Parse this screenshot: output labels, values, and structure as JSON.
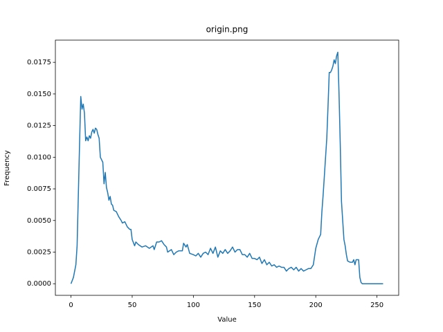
{
  "chart_data": {
    "type": "line",
    "title": "origin.png",
    "x_label": "Value",
    "y_label": "Frequency",
    "xlim": [
      -12.75,
      267.75
    ],
    "xticks": [
      0,
      50,
      100,
      150,
      200,
      250
    ],
    "ylim": [
      -0.000917,
      0.019257
    ],
    "yticks": [
      {
        "value": 0,
        "label": "0.0000"
      },
      {
        "value": 0.0025,
        "label": "0.0025"
      },
      {
        "value": 0.005,
        "label": "0.0050"
      },
      {
        "value": 0.0075,
        "label": "0.0075"
      },
      {
        "value": 0.01,
        "label": "0.0100"
      },
      {
        "value": 0.0125,
        "label": "0.0125"
      },
      {
        "value": 0.015,
        "label": "0.0150"
      },
      {
        "value": 0.0175,
        "label": "0.0175"
      }
    ],
    "grid": false,
    "series": [
      {
        "color": "#1f77b4",
        "x": [
          0,
          2,
          4,
          5,
          6,
          7,
          8,
          9,
          10,
          11,
          12,
          13,
          14,
          15,
          16,
          17,
          18,
          19,
          20,
          21,
          22,
          23,
          24,
          25,
          26,
          27,
          28,
          29,
          30,
          31,
          32,
          33,
          34,
          35,
          37,
          39,
          41,
          42,
          44,
          46,
          48,
          49,
          50,
          52,
          53,
          55,
          58,
          61,
          64,
          67,
          68,
          70,
          72,
          74,
          76,
          78,
          79,
          82,
          84,
          86,
          88,
          91,
          92,
          94,
          95,
          97,
          100,
          102,
          104,
          106,
          108,
          110,
          112,
          114,
          116,
          118,
          120,
          122,
          124,
          126,
          128,
          130,
          132,
          134,
          136,
          138,
          140,
          142,
          144,
          146,
          148,
          150,
          152,
          154,
          156,
          158,
          160,
          162,
          164,
          166,
          168,
          170,
          172,
          174,
          176,
          178,
          180,
          182,
          184,
          186,
          188,
          190,
          192,
          194,
          196,
          198,
          200,
          202,
          204,
          205,
          206,
          207,
          208,
          209,
          210,
          211,
          212,
          213,
          214,
          215,
          216,
          217,
          218,
          219,
          220,
          221,
          222,
          223,
          224,
          225,
          226,
          228,
          230,
          231,
          232,
          233,
          235,
          236,
          237,
          238,
          255
        ],
        "values": [
          0,
          0.0005,
          0.0015,
          0.003,
          0.007,
          0.011,
          0.0148,
          0.0138,
          0.0142,
          0.0135,
          0.0113,
          0.0116,
          0.0113,
          0.0117,
          0.0115,
          0.012,
          0.0122,
          0.0119,
          0.0123,
          0.0122,
          0.0118,
          0.0115,
          0.01,
          0.0098,
          0.0096,
          0.0079,
          0.0088,
          0.0076,
          0.0072,
          0.0066,
          0.0069,
          0.0063,
          0.0062,
          0.0058,
          0.0057,
          0.0053,
          0.005,
          0.0048,
          0.0049,
          0.0045,
          0.0043,
          0.0043,
          0.0035,
          0.003,
          0.0033,
          0.0031,
          0.0029,
          0.003,
          0.0028,
          0.003,
          0.0027,
          0.0033,
          0.0033,
          0.0034,
          0.0031,
          0.0029,
          0.0025,
          0.0027,
          0.0023,
          0.0025,
          0.0026,
          0.0026,
          0.0032,
          0.0029,
          0.0031,
          0.0024,
          0.0023,
          0.0022,
          0.0024,
          0.0021,
          0.0024,
          0.0025,
          0.0023,
          0.0028,
          0.0024,
          0.0029,
          0.0021,
          0.0026,
          0.0024,
          0.0027,
          0.0024,
          0.0026,
          0.0029,
          0.0025,
          0.0027,
          0.0027,
          0.0023,
          0.0023,
          0.0021,
          0.0024,
          0.002,
          0.002,
          0.0019,
          0.0021,
          0.0016,
          0.0019,
          0.0015,
          0.0017,
          0.0014,
          0.0015,
          0.0013,
          0.0014,
          0.0013,
          0.0013,
          0.001,
          0.0012,
          0.0013,
          0.0011,
          0.0013,
          0.001,
          0.0012,
          0.001,
          0.0011,
          0.0012,
          0.0012,
          0.0015,
          0.0028,
          0.0035,
          0.0039,
          0.0057,
          0.007,
          0.0085,
          0.01,
          0.0115,
          0.014,
          0.0167,
          0.0167,
          0.0169,
          0.0172,
          0.0177,
          0.0174,
          0.018,
          0.0183,
          0.015,
          0.011,
          0.0065,
          0.005,
          0.0035,
          0.003,
          0.0023,
          0.0018,
          0.0017,
          0.0017,
          0.0019,
          0.0015,
          0.0019,
          0.0019,
          0.0005,
          0.0001,
          0,
          0
        ]
      }
    ]
  }
}
